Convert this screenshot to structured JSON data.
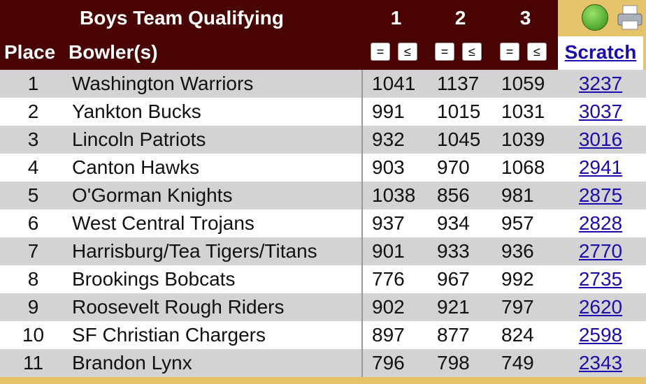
{
  "header": {
    "title": "Boys Team Qualifying",
    "games": [
      "1",
      "2",
      "3"
    ],
    "place_label": "Place",
    "bowler_label": "Bowler(s)",
    "sort_buttons": [
      "=",
      "≤"
    ],
    "scratch_label": "Scratch"
  },
  "table": {
    "rows": [
      [
        1,
        "Washington Warriors",
        1041,
        1137,
        1059,
        3237
      ],
      [
        2,
        "Yankton Bucks",
        991,
        1015,
        1031,
        3037
      ],
      [
        3,
        "Lincoln Patriots",
        932,
        1045,
        1039,
        3016
      ],
      [
        4,
        "Canton Hawks",
        903,
        970,
        1068,
        2941
      ],
      [
        5,
        "O'Gorman Knights",
        1038,
        856,
        981,
        2875
      ],
      [
        6,
        "West Central Trojans",
        937,
        934,
        957,
        2828
      ],
      [
        7,
        "Harrisburg/Tea Tigers/Titans",
        901,
        933,
        936,
        2770
      ],
      [
        8,
        "Brookings Bobcats",
        776,
        967,
        992,
        2735
      ],
      [
        9,
        "Roosevelt Rough Riders",
        902,
        921,
        797,
        2620
      ],
      [
        10,
        "SF Christian Chargers",
        897,
        877,
        824,
        2598
      ],
      [
        11,
        "Brandon Lynx",
        796,
        798,
        749,
        2343
      ]
    ]
  }
}
